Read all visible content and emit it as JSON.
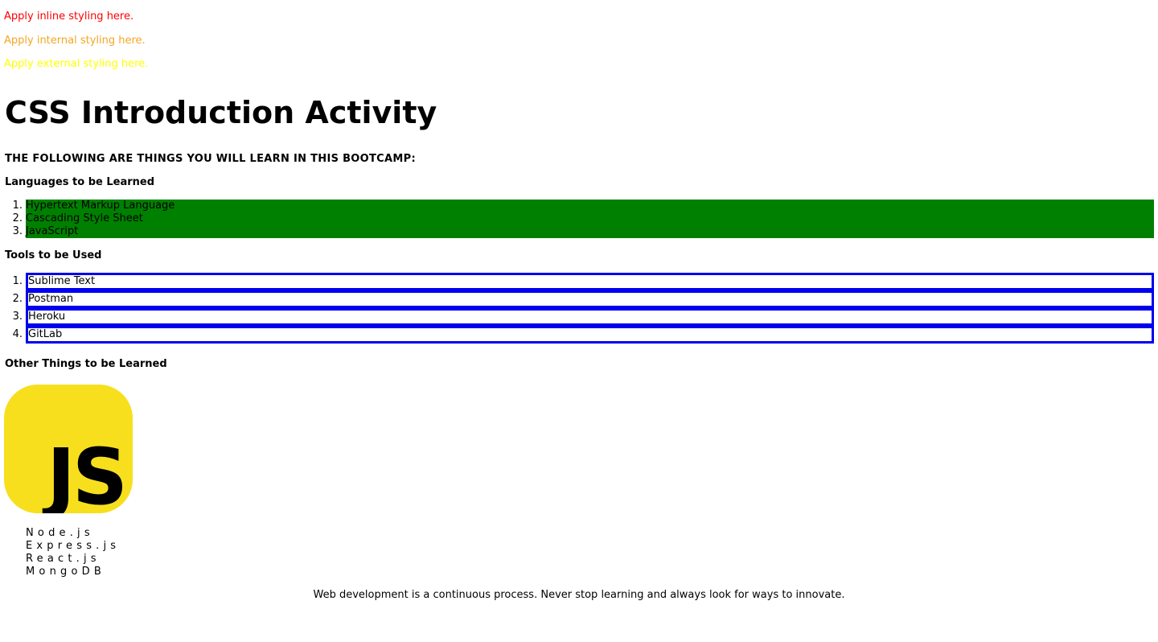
{
  "notes": {
    "inline": "Apply inline styling here.",
    "internal": "Apply internal styling here.",
    "external": "Apply external styling here."
  },
  "colors": {
    "inline": "#ff0000",
    "internal": "#f5a623",
    "external": "#ffff00",
    "languages_bg": "#008000",
    "tools_border": "#0000ee",
    "js_logo_bg": "#f7df1e"
  },
  "title": "CSS Introduction Activity",
  "bootcamp_heading": "THE FOLLOWING ARE THINGS YOU WILL LEARN IN THIS BOOTCAMP:",
  "languages": {
    "heading": "Languages to be Learned",
    "items": [
      {
        "num": "1.",
        "label": "Hypertext Markup Language"
      },
      {
        "num": "2.",
        "label": "Cascading Style Sheet"
      },
      {
        "num": "3.",
        "label": "JavaScript"
      }
    ]
  },
  "tools": {
    "heading": "Tools to be Used",
    "items": [
      {
        "num": "1.",
        "label": "Sublime Text"
      },
      {
        "num": "2.",
        "label": "Postman"
      },
      {
        "num": "3.",
        "label": "Heroku"
      },
      {
        "num": "4.",
        "label": "GitLab"
      }
    ]
  },
  "other": {
    "heading": "Other Things to be Learned",
    "logo_text": "JS",
    "items": [
      "Node.js",
      "Express.js",
      "React.js",
      "MongoDB"
    ]
  },
  "footer": "Web development is a continuous process. Never stop learning and always look for ways to innovate."
}
